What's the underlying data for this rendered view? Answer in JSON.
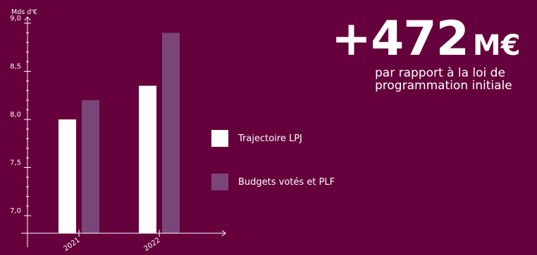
{
  "colors": {
    "background": "#65003c",
    "trajectoire": "#ffffff",
    "budgets": "#7a4678"
  },
  "highlight": {
    "value": "+472",
    "unit": "M€",
    "caption": "par rapport à la loi de programmation initiale"
  },
  "chart_data": {
    "type": "bar",
    "ylabel": "Mds d'€",
    "ylim": [
      6.9,
      9.0
    ],
    "yticks": [
      "7,0",
      "7,5",
      "8,0",
      "8,5",
      "9,0"
    ],
    "ytick_values": [
      7.0,
      7.5,
      8.0,
      8.5,
      9.0
    ],
    "categories": [
      "2021",
      "2022"
    ],
    "series": [
      {
        "name": "Trajectoire LPJ",
        "values": [
          8.0,
          8.35
        ]
      },
      {
        "name": "Budgets votés et PLF",
        "values": [
          8.2,
          8.9
        ]
      }
    ],
    "legend": "right"
  }
}
